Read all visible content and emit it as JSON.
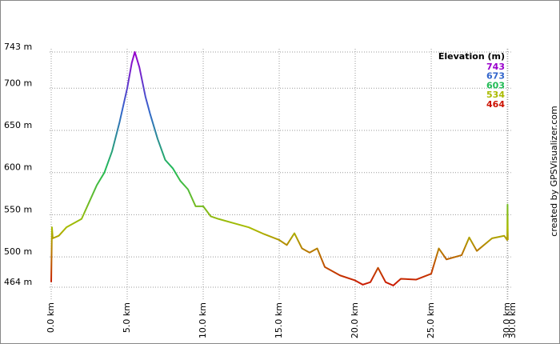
{
  "chart_data": {
    "type": "line",
    "x": [
      0,
      0.05,
      0.1,
      0.5,
      1.0,
      1.5,
      2.0,
      2.5,
      3.0,
      3.5,
      4.0,
      4.5,
      5.0,
      5.3,
      5.5,
      5.8,
      6.2,
      6.5,
      7.0,
      7.5,
      8.0,
      8.5,
      9.0,
      9.5,
      10.0,
      10.5,
      11.0,
      12.0,
      13.0,
      14.0,
      15.0,
      15.5,
      16.0,
      16.5,
      17.0,
      17.5,
      18.0,
      19.0,
      20.0,
      20.5,
      21.0,
      21.5,
      22.0,
      22.5,
      23.0,
      24.0,
      25.0,
      25.5,
      26.0,
      27.0,
      27.5,
      28.0,
      29.0,
      29.8,
      30.0,
      30.02,
      30.04
    ],
    "values": [
      470,
      535,
      522,
      525,
      535,
      540,
      545,
      565,
      585,
      600,
      625,
      660,
      700,
      730,
      743,
      725,
      690,
      670,
      640,
      615,
      605,
      590,
      580,
      560,
      560,
      548,
      545,
      540,
      535,
      527,
      520,
      514,
      528,
      510,
      505,
      510,
      488,
      478,
      472,
      467,
      470,
      487,
      470,
      466,
      474,
      473,
      480,
      510,
      497,
      502,
      523,
      507,
      522,
      525,
      520,
      562,
      520
    ],
    "xlim": [
      0,
      30.04
    ],
    "ylim": [
      464,
      743
    ],
    "xticks": [
      {
        "value": 0,
        "label": "0.0 km"
      },
      {
        "value": 5,
        "label": "5.0 km"
      },
      {
        "value": 10,
        "label": "10.0 km"
      },
      {
        "value": 15,
        "label": "15.0 km"
      },
      {
        "value": 20,
        "label": "20.0 km"
      },
      {
        "value": 25,
        "label": "25.0 km"
      },
      {
        "value": 30,
        "label": "30.0 km"
      },
      {
        "value": 30.04,
        "label": "30.0 km"
      }
    ],
    "yticks": [
      {
        "value": 743,
        "label": "743 m"
      },
      {
        "value": 700,
        "label": "700 m"
      },
      {
        "value": 650,
        "label": "650 m"
      },
      {
        "value": 600,
        "label": "600 m"
      },
      {
        "value": 550,
        "label": "550 m"
      },
      {
        "value": 500,
        "label": "500 m"
      },
      {
        "value": 464,
        "label": "464 m"
      }
    ],
    "grid": true,
    "legend": {
      "title": "Elevation (m)",
      "position": "top-right",
      "entries": [
        {
          "value": 743,
          "color": "#9900cc"
        },
        {
          "value": 673,
          "color": "#3366cc"
        },
        {
          "value": 603,
          "color": "#22bb55"
        },
        {
          "value": 534,
          "color": "#aabb00"
        },
        {
          "value": 464,
          "color": "#cc1100"
        }
      ]
    },
    "credit": "created by GPSVisualizer.com"
  }
}
